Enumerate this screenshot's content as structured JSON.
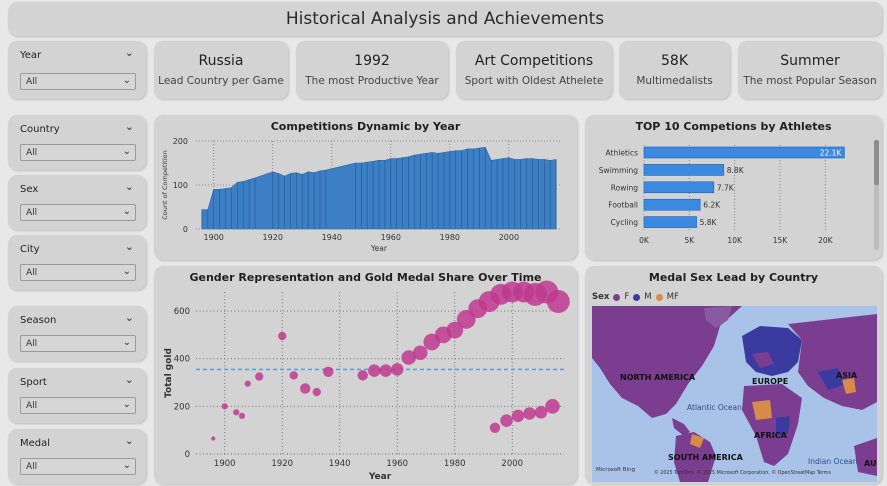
{
  "header": {
    "title": "Historical Analysis and Achievements"
  },
  "slicers": [
    {
      "label": "Year",
      "value": "All"
    },
    {
      "label": "Country",
      "value": "All"
    },
    {
      "label": "Sex",
      "value": "All"
    },
    {
      "label": "City",
      "value": "All"
    },
    {
      "label": "Season",
      "value": "All"
    },
    {
      "label": "Sport",
      "value": "All"
    },
    {
      "label": "Medal",
      "value": "All"
    }
  ],
  "kpis": [
    {
      "value": "Russia",
      "label": "Lead Country per Game"
    },
    {
      "value": "1992",
      "label": "The most Productive Year"
    },
    {
      "value": "Art Competitions",
      "label": "Sport with Oldest Athelete"
    },
    {
      "value": "58K",
      "label": "Multimedalists"
    },
    {
      "value": "Summer",
      "label": "The most Popular Season"
    }
  ],
  "colors": {
    "accent_blue": "#3c7fc4",
    "bubble": "#c0388f",
    "map_f": "#7b3d8f",
    "map_m": "#3a3aa0",
    "map_mf": "#d88a4a",
    "avg_line": "#5aa0e0"
  },
  "chart_data": [
    {
      "type": "area",
      "title": "Competitions Dynamic by Year",
      "xlabel": "Year",
      "ylabel": "Count of Competition",
      "xlim": [
        1894,
        2018
      ],
      "ylim": [
        0,
        200
      ],
      "x_ticks": [
        "1900",
        "1920",
        "1940",
        "1960",
        "1980",
        "2000"
      ],
      "y_ticks": [
        "0",
        "100",
        "200"
      ],
      "grid": true,
      "x": [
        1896,
        1898,
        1900,
        1902,
        1904,
        1906,
        1908,
        1910,
        1912,
        1914,
        1920,
        1922,
        1924,
        1926,
        1928,
        1930,
        1932,
        1934,
        1936,
        1938,
        1948,
        1950,
        1952,
        1954,
        1956,
        1958,
        1960,
        1962,
        1964,
        1966,
        1968,
        1970,
        1972,
        1974,
        1976,
        1978,
        1980,
        1982,
        1984,
        1986,
        1988,
        1990,
        1992,
        1994,
        1996,
        1998,
        2000,
        2002,
        2004,
        2006,
        2008,
        2010,
        2012,
        2014,
        2016
      ],
      "values": [
        44,
        44,
        90,
        90,
        92,
        94,
        106,
        108,
        112,
        116,
        130,
        126,
        120,
        126,
        128,
        124,
        130,
        128,
        132,
        134,
        150,
        150,
        152,
        154,
        156,
        156,
        160,
        160,
        162,
        164,
        168,
        170,
        172,
        174,
        172,
        174,
        176,
        178,
        178,
        182,
        182,
        184,
        186,
        156,
        158,
        160,
        162,
        158,
        158,
        160,
        160,
        158,
        158,
        156,
        158
      ]
    },
    {
      "type": "bar",
      "title": "TOP 10 Competions by Athletes",
      "categories": [
        "Athletics",
        "Swimming",
        "Rowing",
        "Football",
        "Cycling"
      ],
      "values": [
        22.1,
        8.8,
        7.7,
        6.2,
        5.8
      ],
      "data_labels": [
        "22.1K",
        "8.8K",
        "7.7K",
        "6.2K",
        "5.8K"
      ],
      "x_ticks": [
        "0K",
        "5K",
        "10K",
        "15K",
        "20K"
      ],
      "xlim": [
        0,
        22.5
      ],
      "orientation": "horizontal",
      "grid": true
    },
    {
      "type": "scatter",
      "title": "Gender Representation and Gold Medal Share Over Time",
      "xlabel": "Year",
      "ylabel": "Total gold",
      "xlim": [
        1890,
        2018
      ],
      "ylim": [
        0,
        680
      ],
      "x_ticks": [
        "1900",
        "1920",
        "1940",
        "1960",
        "1980",
        "2000"
      ],
      "y_ticks": [
        "0",
        "200",
        "400",
        "600"
      ],
      "average_line": 355,
      "grid": true,
      "points": [
        {
          "x": 1896,
          "y": 65,
          "s": 1
        },
        {
          "x": 1900,
          "y": 200,
          "s": 2
        },
        {
          "x": 1904,
          "y": 175,
          "s": 2
        },
        {
          "x": 1906,
          "y": 160,
          "s": 2
        },
        {
          "x": 1908,
          "y": 295,
          "s": 2
        },
        {
          "x": 1912,
          "y": 325,
          "s": 3
        },
        {
          "x": 1920,
          "y": 495,
          "s": 3
        },
        {
          "x": 1924,
          "y": 330,
          "s": 3
        },
        {
          "x": 1928,
          "y": 275,
          "s": 4
        },
        {
          "x": 1932,
          "y": 260,
          "s": 3
        },
        {
          "x": 1936,
          "y": 345,
          "s": 4
        },
        {
          "x": 1948,
          "y": 330,
          "s": 4
        },
        {
          "x": 1952,
          "y": 350,
          "s": 5
        },
        {
          "x": 1956,
          "y": 350,
          "s": 5
        },
        {
          "x": 1960,
          "y": 355,
          "s": 5
        },
        {
          "x": 1964,
          "y": 405,
          "s": 6
        },
        {
          "x": 1968,
          "y": 425,
          "s": 6
        },
        {
          "x": 1972,
          "y": 470,
          "s": 7
        },
        {
          "x": 1976,
          "y": 500,
          "s": 7
        },
        {
          "x": 1980,
          "y": 520,
          "s": 7
        },
        {
          "x": 1984,
          "y": 565,
          "s": 8
        },
        {
          "x": 1988,
          "y": 610,
          "s": 8
        },
        {
          "x": 1992,
          "y": 640,
          "s": 9
        },
        {
          "x": 1996,
          "y": 670,
          "s": 9
        },
        {
          "x": 2000,
          "y": 680,
          "s": 9
        },
        {
          "x": 2004,
          "y": 680,
          "s": 9
        },
        {
          "x": 2008,
          "y": 670,
          "s": 10
        },
        {
          "x": 2012,
          "y": 680,
          "s": 10
        },
        {
          "x": 2016,
          "y": 640,
          "s": 10
        },
        {
          "x": 1994,
          "y": 110,
          "s": 4
        },
        {
          "x": 1998,
          "y": 140,
          "s": 5
        },
        {
          "x": 2002,
          "y": 160,
          "s": 5
        },
        {
          "x": 2006,
          "y": 170,
          "s": 5
        },
        {
          "x": 2010,
          "y": 175,
          "s": 5
        },
        {
          "x": 2014,
          "y": 200,
          "s": 6
        }
      ]
    }
  ],
  "map": {
    "title": "Medal Sex Lead by Country",
    "legend_title": "Sex",
    "legend": [
      {
        "label": "F",
        "color": "#7b3d8f"
      },
      {
        "label": "M",
        "color": "#3a3aa0"
      },
      {
        "label": "MF",
        "color": "#d88a4a"
      }
    ],
    "labels": [
      "NORTH AMERICA",
      "EUROPE",
      "ASIA",
      "AFRICA",
      "SOUTH AMERICA",
      "Atlantic Ocean",
      "Indian Ocean",
      "AUS"
    ],
    "brand": "Microsoft Bing",
    "attribution": "© 2025 TomTom, © 2025 Microsoft Corporation, © OpenStreetMap Terms"
  }
}
